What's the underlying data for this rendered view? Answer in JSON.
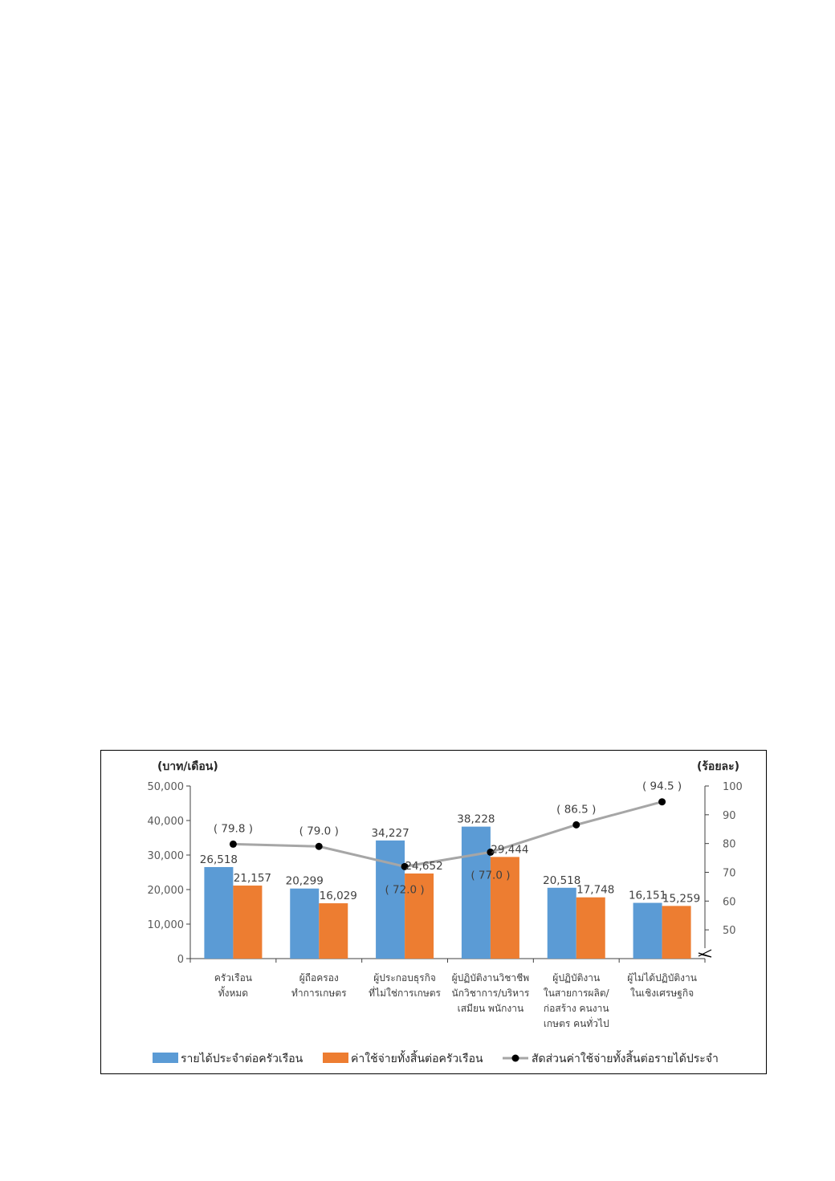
{
  "chart_data": {
    "type": "bar",
    "left_unit": "(บาท/เดือน)",
    "right_unit": "(ร้อยละ)",
    "categories": [
      [
        "ครัวเรือน",
        "ทั้งหมด"
      ],
      [
        "ผู้ถือครอง",
        "ทำการเกษตร"
      ],
      [
        "ผู้ประกอบธุรกิจ",
        "ที่ไม่ใช่การเกษตร"
      ],
      [
        "ผู้ปฏิบัติงานวิชาชีพ",
        "นักวิชาการ/บริหาร",
        "เสมียน พนักงาน"
      ],
      [
        "ผู้ปฏิบัติงาน",
        "ในสายการผลิต/",
        "ก่อสร้าง คนงาน",
        "เกษตร คนทั่วไป"
      ],
      [
        "ผู้ไม่ได้ปฏิบัติงาน",
        "ในเชิงเศรษฐกิจ"
      ]
    ],
    "series": [
      {
        "name": "รายได้ประจำต่อครัวเรือน",
        "type": "bar",
        "color": "#5b9bd5",
        "values": [
          26518,
          20299,
          34227,
          38228,
          20518,
          16151
        ],
        "labels": [
          "26,518",
          "20,299",
          "34,227",
          "38,228",
          "20,518",
          "16,151"
        ]
      },
      {
        "name": "ค่าใช้จ่ายทั้งสิ้นต่อครัวเรือน",
        "type": "bar",
        "color": "#ed7d31",
        "values": [
          21157,
          16029,
          24652,
          29444,
          17748,
          15259
        ],
        "labels": [
          "21,157",
          "16,029",
          "24,652",
          "29,444",
          "17,748",
          "15,259"
        ]
      },
      {
        "name": "สัดส่วนค่าใช้จ่ายทั้งสิ้นต่อรายได้ประจำ",
        "type": "line",
        "axis": "right",
        "color": "#a6a6a6",
        "marker_color": "#000000",
        "values": [
          79.8,
          79.0,
          72.0,
          77.0,
          86.5,
          94.5
        ],
        "labels": [
          "( 79.8 )",
          "( 79.0 )",
          "( 72.0 )",
          "( 77.0 )",
          "( 86.5 )",
          "( 94.5 )"
        ]
      }
    ],
    "y_left": {
      "min": 0,
      "max": 50000,
      "ticks": [
        "0",
        "10,000",
        "20,000",
        "30,000",
        "40,000",
        "50,000"
      ],
      "tick_values": [
        0,
        10000,
        20000,
        30000,
        40000,
        50000
      ]
    },
    "y_right": {
      "min": 40,
      "max": 100,
      "axis_break": true,
      "ticks": [
        "50",
        "60",
        "70",
        "80",
        "90",
        "100"
      ],
      "tick_values": [
        50,
        60,
        70,
        80,
        90,
        100
      ]
    },
    "grid": false,
    "legend_position": "bottom"
  }
}
